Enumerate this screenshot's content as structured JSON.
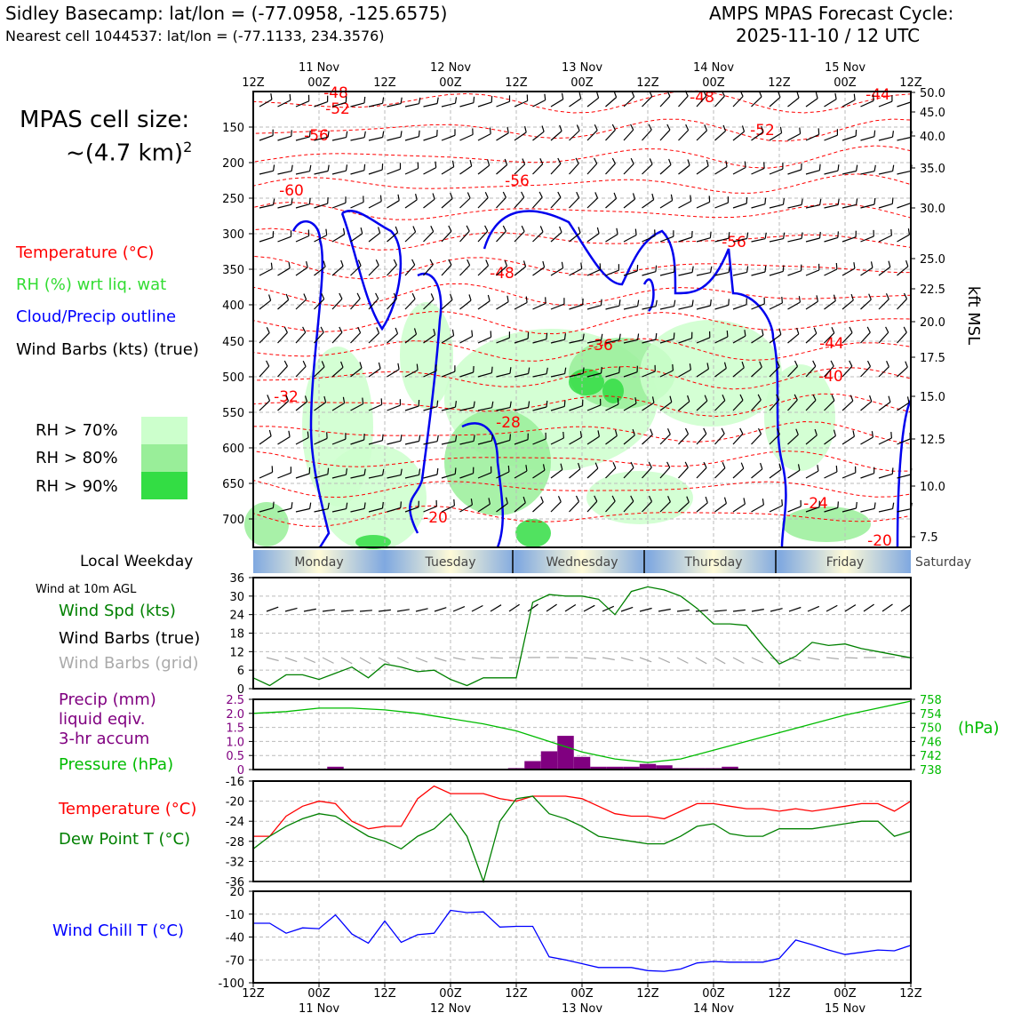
{
  "header": {
    "title_left": "Sidley Basecamp: lat/lon = (-77.0958, -125.6575)",
    "subtitle_left": "Nearest cell 1044537: lat/lon = (-77.1133, 234.3576)",
    "title_right_line1": "AMPS MPAS Forecast Cycle:",
    "title_right_line2": "2025-11-10 / 12 UTC"
  },
  "cell_size": {
    "label": "MPAS cell size:",
    "value": "~(4.7 km)",
    "superscript": "2"
  },
  "upper_legend": [
    {
      "text": "Temperature (°C)",
      "color": "#ff0000"
    },
    {
      "text": "RH (%) wrt liq. wat",
      "color": "#33dd33"
    },
    {
      "text": "Cloud/Precip outline",
      "color": "#0000ff"
    },
    {
      "text": "Wind Barbs (kts) (true)",
      "color": "#000000"
    }
  ],
  "rh_legend": [
    {
      "text": "RH > 70%",
      "color": "#ccffcc"
    },
    {
      "text": "RH > 80%",
      "color": "#99ee99"
    },
    {
      "text": "RH > 90%",
      "color": "#33dd44"
    }
  ],
  "time_axis": {
    "ticks": [
      "12Z",
      "00Z",
      "12Z",
      "00Z",
      "12Z",
      "00Z",
      "12Z",
      "00Z",
      "12Z",
      "00Z",
      "12Z"
    ],
    "dates": [
      {
        "index": 1,
        "text": "11 Nov"
      },
      {
        "index": 3,
        "text": "12 Nov"
      },
      {
        "index": 5,
        "text": "13 Nov"
      },
      {
        "index": 7,
        "text": "14 Nov"
      },
      {
        "index": 9,
        "text": "15 Nov"
      }
    ]
  },
  "cross_section": {
    "pressure_ticks": [
      "150",
      "200",
      "250",
      "300",
      "350",
      "400",
      "450",
      "500",
      "550",
      "600",
      "650",
      "700"
    ],
    "kft_ticks": [
      "50.0",
      "45.0",
      "40.0",
      "35.0",
      "30.0",
      "25.0",
      "22.5",
      "20.0",
      "17.5",
      "15.0",
      "12.5",
      "10.0",
      "7.5"
    ],
    "kft_label": "kft MSL",
    "temperature_labels": [
      "-48",
      "-52",
      "-56",
      "-60",
      "-56",
      "-48",
      "-56",
      "-52",
      "-48",
      "-44",
      "-36",
      "-44",
      "-40",
      "-32",
      "-28",
      "-24",
      "-20",
      "-20"
    ],
    "unit_note": "isotherm labels in °C"
  },
  "weekday_bar": {
    "label": "Local Weekday",
    "days": [
      "Monday",
      "Tuesday",
      "Wednesday",
      "Thursday",
      "Friday",
      "Saturday"
    ]
  },
  "wind_panel": {
    "header": "Wind at 10m AGL",
    "legend": [
      {
        "text": "Wind Spd (kts)",
        "color": "#008000"
      },
      {
        "text": "Wind Barbs (true)",
        "color": "#000000"
      },
      {
        "text": "Wind Barbs (grid)",
        "color": "#aaaaaa"
      }
    ],
    "y_ticks": [
      "36",
      "30",
      "24",
      "18",
      "12",
      "6",
      "0"
    ]
  },
  "precip_panel": {
    "legend": [
      {
        "text": "Precip (mm)",
        "color": "#800080"
      },
      {
        "text": "liquid eqiv.",
        "color": "#800080"
      },
      {
        "text": "3-hr accum",
        "color": "#800080"
      },
      {
        "text": "Pressure (hPa)",
        "color": "#00bb00"
      }
    ],
    "y_ticks_left": [
      "2.5",
      "2.0",
      "1.5",
      "1.0",
      "0.5",
      "0"
    ],
    "y_ticks_right": [
      "758",
      "754",
      "750",
      "746",
      "742",
      "738"
    ],
    "right_unit": "(hPa)"
  },
  "temp_panel": {
    "legend": [
      {
        "text": "Temperature (°C)",
        "color": "#ff0000"
      },
      {
        "text": "Dew Point T (°C)",
        "color": "#008000"
      }
    ],
    "y_ticks": [
      "-16",
      "-20",
      "-24",
      "-28",
      "-32",
      "-36"
    ]
  },
  "windchill_panel": {
    "legend": [
      {
        "text": "Wind Chill T (°C)",
        "color": "#0000ff"
      }
    ],
    "y_ticks": [
      "20",
      "-10",
      "-40",
      "-70",
      "-100"
    ]
  },
  "chart_data": [
    {
      "type": "line",
      "title": "Wind at 10m AGL",
      "ylabel": "Wind Spd (kts)",
      "x_hours": [
        0,
        3,
        6,
        9,
        12,
        15,
        18,
        21,
        24,
        27,
        30,
        33,
        36,
        39,
        42,
        45,
        48,
        51,
        54,
        57,
        60,
        63,
        66,
        69,
        72,
        75,
        78,
        81,
        84,
        87,
        90,
        93,
        96,
        99,
        102,
        105,
        108,
        111,
        114,
        117,
        120
      ],
      "ylim": [
        0,
        36
      ],
      "series": [
        {
          "name": "Wind Spd (kts)",
          "color": "#008000",
          "values": [
            3.5,
            1,
            4.5,
            4.5,
            3,
            5,
            7,
            3.5,
            8,
            7,
            5.5,
            6,
            3,
            1,
            3.5,
            3.5,
            3.5,
            28,
            30.5,
            30,
            30,
            29,
            24,
            31.5,
            33,
            32,
            30,
            26,
            21,
            21,
            20.5,
            14,
            8,
            10.5,
            15,
            14,
            14.5,
            13,
            12,
            11,
            10
          ]
        }
      ]
    },
    {
      "type": "bar",
      "title": "Precip (mm) liquid eqiv. 3-hr accum",
      "ylabel": "Precip (mm)",
      "x_hours": [
        15,
        48,
        51,
        54,
        57,
        60,
        63,
        66,
        69,
        72,
        75,
        78,
        81,
        84,
        87
      ],
      "values": [
        0.1,
        0.05,
        0.3,
        0.65,
        1.2,
        0.45,
        0.1,
        0.1,
        0.1,
        0.2,
        0.15,
        0.05,
        0.05,
        0.05,
        0.1
      ],
      "ylim": [
        0,
        2.5
      ]
    },
    {
      "type": "line",
      "title": "Pressure (hPa)",
      "ylabel": "Pressure (hPa)",
      "x_hours": [
        0,
        6,
        12,
        18,
        24,
        30,
        36,
        42,
        48,
        54,
        60,
        66,
        72,
        78,
        84,
        90,
        96,
        102,
        108,
        114,
        120
      ],
      "ylim": [
        738,
        758
      ],
      "series": [
        {
          "name": "Pressure (hPa)",
          "color": "#00bb00",
          "values": [
            754,
            754.5,
            755.5,
            755.5,
            755,
            754,
            752.5,
            751,
            749,
            746,
            743,
            741,
            740,
            741,
            743.5,
            746,
            748.5,
            751,
            753.5,
            755.5,
            757.5
          ]
        }
      ]
    },
    {
      "type": "line",
      "title": "Temperature and Dew Point",
      "ylabel": "°C",
      "x_hours": [
        0,
        3,
        6,
        9,
        12,
        15,
        18,
        21,
        24,
        27,
        30,
        33,
        36,
        39,
        42,
        45,
        48,
        51,
        54,
        57,
        60,
        63,
        66,
        69,
        72,
        75,
        78,
        81,
        84,
        87,
        90,
        93,
        96,
        99,
        102,
        105,
        108,
        111,
        114,
        117,
        120
      ],
      "ylim": [
        -36,
        -16
      ],
      "series": [
        {
          "name": "Temperature (°C)",
          "color": "#ff0000",
          "values": [
            -27,
            -27,
            -23,
            -21,
            -20,
            -20.5,
            -24,
            -25.5,
            -25,
            -25,
            -19.5,
            -17,
            -18.5,
            -18.5,
            -18.5,
            -19.5,
            -20,
            -19,
            -19,
            -19,
            -19.5,
            -21,
            -22.5,
            -23,
            -23,
            -23.5,
            -22,
            -20.5,
            -20.5,
            -21,
            -21.5,
            -21.5,
            -22,
            -21.5,
            -22,
            -21.5,
            -21,
            -20.5,
            -20.5,
            -22,
            -20
          ]
        },
        {
          "name": "Dew Point T (°C)",
          "color": "#008000",
          "values": [
            -29.5,
            -27,
            -25,
            -23.5,
            -22.5,
            -23,
            -25,
            -27,
            -28,
            -29.5,
            -27,
            -25.5,
            -22.5,
            -27,
            -36,
            -24,
            -19.5,
            -19,
            -22.5,
            -23.5,
            -25,
            -27,
            -27.5,
            -28,
            -28.5,
            -28.5,
            -27,
            -25,
            -24.5,
            -26.5,
            -27,
            -27,
            -25.5,
            -25.5,
            -25.5,
            -25,
            -24.5,
            -24,
            -24,
            -27,
            -26
          ]
        }
      ]
    },
    {
      "type": "line",
      "title": "Wind Chill T (°C)",
      "ylabel": "Wind Chill T (°C)",
      "x_hours": [
        0,
        3,
        6,
        9,
        12,
        15,
        18,
        21,
        24,
        27,
        30,
        33,
        36,
        39,
        42,
        45,
        48,
        51,
        54,
        57,
        60,
        63,
        66,
        69,
        72,
        75,
        78,
        81,
        84,
        87,
        90,
        93,
        96,
        99,
        102,
        105,
        108,
        111,
        114,
        117,
        120
      ],
      "ylim": [
        -100,
        20
      ],
      "series": [
        {
          "name": "Wind Chill T (°C)",
          "color": "#0000ff",
          "values": [
            -22,
            -22,
            -35,
            -28,
            -29,
            -11,
            -36,
            -48,
            -19,
            -47,
            -37,
            -35,
            -5,
            -8,
            -7,
            -27,
            -26,
            -26,
            -66,
            -70,
            -75,
            -80,
            -80,
            -80,
            -84,
            -85,
            -82,
            -74,
            -72,
            -73,
            -73,
            -73,
            -68,
            -44,
            -50,
            -57,
            -63,
            -60,
            -57,
            -58,
            -51
          ]
        }
      ]
    }
  ]
}
